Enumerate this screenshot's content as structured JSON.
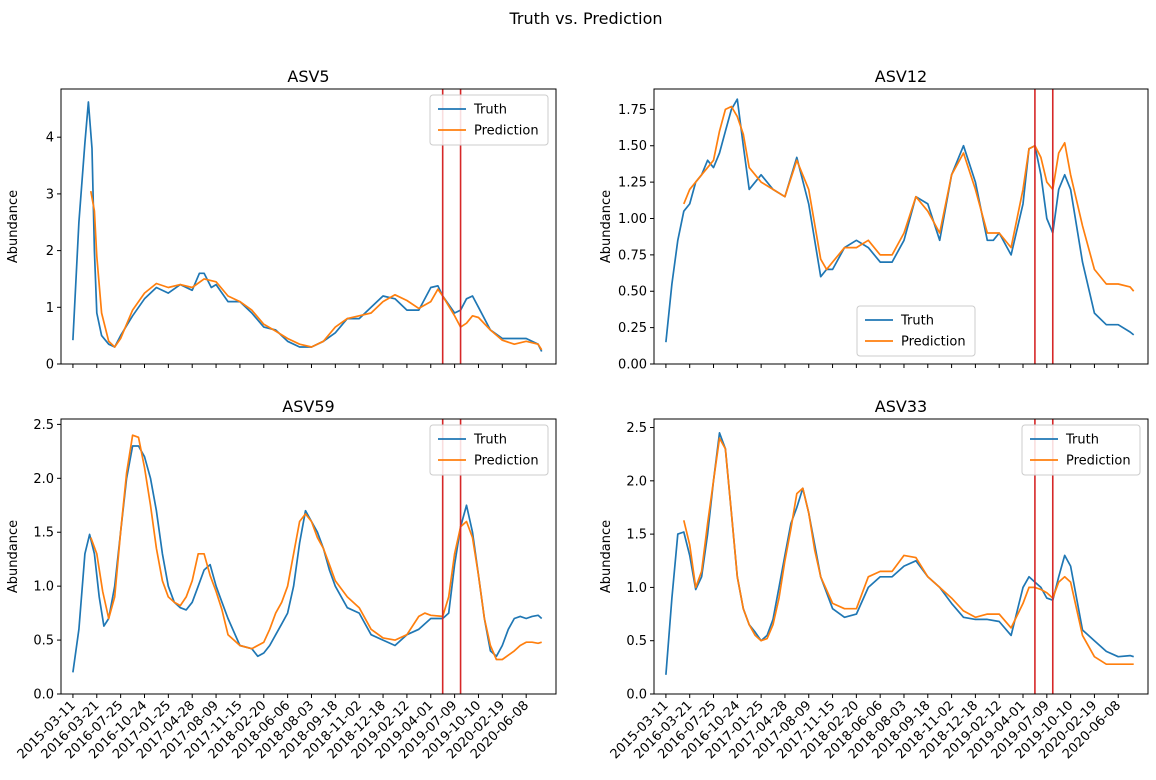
{
  "figure": {
    "title": "Truth vs. Prediction"
  },
  "colors": {
    "truth": "#1f77b4",
    "prediction": "#ff7f0e",
    "vline": "#d62728"
  },
  "chart_data": [
    {
      "type": "line",
      "title": "ASV5",
      "xlabel": "",
      "ylabel": "Abundance",
      "ylim": [
        0,
        4.85
      ],
      "yticks": [
        0,
        1,
        2,
        3,
        4
      ],
      "ytick_labels": [
        "0",
        "1",
        "2",
        "3",
        "4"
      ],
      "xticklabels_visible": false,
      "legend": {
        "loc": "upper right",
        "entries": [
          "Truth",
          "Prediction"
        ]
      },
      "vlines_x": [
        31,
        32.5
      ],
      "series": [
        {
          "name": "Truth",
          "x": [
            0,
            0.5,
            1,
            1.3,
            1.6,
            1.8,
            2,
            2.4,
            3,
            3.5,
            4,
            5,
            6,
            7,
            8,
            9,
            10,
            10.6,
            11,
            11.6,
            12,
            13,
            14,
            15,
            16,
            17,
            18,
            19,
            20,
            21,
            22,
            23,
            24,
            25,
            26,
            27,
            28,
            29,
            30,
            30.6,
            31,
            31.5,
            32,
            32.5,
            33,
            33.5,
            34,
            35,
            36,
            37,
            38,
            39,
            39.3
          ],
          "values": [
            0.42,
            2.5,
            3.9,
            4.62,
            3.8,
            2.0,
            0.9,
            0.5,
            0.35,
            0.3,
            0.5,
            0.85,
            1.15,
            1.35,
            1.25,
            1.4,
            1.3,
            1.6,
            1.6,
            1.35,
            1.4,
            1.1,
            1.1,
            0.9,
            0.65,
            0.6,
            0.4,
            0.3,
            0.3,
            0.4,
            0.55,
            0.8,
            0.8,
            1.0,
            1.2,
            1.15,
            0.95,
            0.95,
            1.35,
            1.38,
            1.2,
            1.05,
            0.9,
            0.95,
            1.15,
            1.2,
            1.0,
            0.6,
            0.45,
            0.45,
            0.45,
            0.35,
            0.22
          ]
        },
        {
          "name": "Prediction",
          "x": [
            1.5,
            1.8,
            2,
            2.4,
            3,
            3.5,
            4,
            5,
            6,
            7,
            8,
            9,
            10,
            11,
            12,
            13,
            14,
            15,
            16,
            17,
            18,
            19,
            20,
            21,
            22,
            23,
            24,
            25,
            26,
            27,
            28,
            29,
            30,
            30.6,
            31,
            32,
            32.5,
            33,
            33.5,
            34,
            35,
            36,
            37,
            38,
            39,
            39.3
          ],
          "values": [
            3.05,
            2.7,
            1.9,
            0.9,
            0.4,
            0.3,
            0.45,
            0.95,
            1.25,
            1.42,
            1.35,
            1.4,
            1.35,
            1.5,
            1.45,
            1.2,
            1.1,
            0.95,
            0.7,
            0.58,
            0.45,
            0.35,
            0.3,
            0.4,
            0.65,
            0.8,
            0.85,
            0.9,
            1.1,
            1.22,
            1.12,
            0.98,
            1.1,
            1.32,
            1.2,
            0.85,
            0.65,
            0.72,
            0.85,
            0.82,
            0.6,
            0.42,
            0.35,
            0.4,
            0.35,
            0.25
          ]
        }
      ]
    },
    {
      "type": "line",
      "title": "ASV12",
      "xlabel": "",
      "ylabel": "Abundance",
      "ylim": [
        0,
        1.89
      ],
      "yticks": [
        0,
        0.25,
        0.5,
        0.75,
        1.0,
        1.25,
        1.5,
        1.75
      ],
      "ytick_labels": [
        "0.00",
        "0.25",
        "0.50",
        "0.75",
        "1.00",
        "1.25",
        "1.50",
        "1.75"
      ],
      "xticklabels_visible": false,
      "legend": {
        "loc": "lower center",
        "entries": [
          "Truth",
          "Prediction"
        ]
      },
      "vlines_x": [
        31,
        32.5
      ],
      "series": [
        {
          "name": "Truth",
          "x": [
            0,
            0.5,
            1,
            1.5,
            2,
            2.5,
            3,
            3.5,
            4,
            4.5,
            5,
            5.5,
            6,
            6.5,
            7,
            7.5,
            8,
            9,
            10,
            11,
            12,
            13,
            13.5,
            14,
            15,
            16,
            17,
            18,
            19,
            20,
            21,
            22,
            23,
            24,
            25,
            26,
            27,
            27.5,
            28,
            29,
            30,
            30.5,
            31,
            31.5,
            32,
            32.5,
            33,
            33.5,
            34,
            35,
            36,
            37,
            38,
            39,
            39.3
          ],
          "values": [
            0.15,
            0.55,
            0.85,
            1.05,
            1.1,
            1.25,
            1.3,
            1.4,
            1.35,
            1.45,
            1.6,
            1.75,
            1.82,
            1.5,
            1.2,
            1.25,
            1.3,
            1.2,
            1.15,
            1.42,
            1.1,
            0.6,
            0.65,
            0.65,
            0.8,
            0.85,
            0.8,
            0.7,
            0.7,
            0.85,
            1.15,
            1.1,
            0.85,
            1.3,
            1.5,
            1.25,
            0.85,
            0.85,
            0.9,
            0.75,
            1.1,
            1.48,
            1.5,
            1.3,
            1.0,
            0.9,
            1.2,
            1.3,
            1.2,
            0.7,
            0.35,
            0.27,
            0.27,
            0.22,
            0.2
          ]
        },
        {
          "name": "Prediction",
          "x": [
            1.5,
            2,
            2.5,
            3,
            3.5,
            4,
            4.5,
            5,
            5.5,
            6,
            6.5,
            7,
            8,
            9,
            10,
            11,
            12,
            13,
            13.5,
            14,
            15,
            16,
            17,
            18,
            19,
            20,
            21,
            22,
            23,
            24,
            25,
            26,
            27,
            28,
            29,
            30,
            30.5,
            31,
            31.5,
            32,
            32.5,
            33,
            33.5,
            34,
            35,
            36,
            37,
            38,
            39,
            39.3
          ],
          "values": [
            1.1,
            1.2,
            1.25,
            1.3,
            1.35,
            1.4,
            1.6,
            1.75,
            1.77,
            1.7,
            1.58,
            1.35,
            1.25,
            1.2,
            1.15,
            1.4,
            1.2,
            0.72,
            0.65,
            0.7,
            0.8,
            0.8,
            0.85,
            0.75,
            0.75,
            0.9,
            1.15,
            1.05,
            0.9,
            1.3,
            1.45,
            1.2,
            0.9,
            0.9,
            0.8,
            1.2,
            1.48,
            1.5,
            1.42,
            1.25,
            1.2,
            1.45,
            1.52,
            1.3,
            0.95,
            0.65,
            0.55,
            0.55,
            0.53,
            0.5
          ]
        }
      ]
    },
    {
      "type": "line",
      "title": "ASV59",
      "xlabel": "",
      "ylabel": "Abundance",
      "ylim": [
        0,
        2.55
      ],
      "yticks": [
        0,
        0.5,
        1.0,
        1.5,
        2.0,
        2.5
      ],
      "ytick_labels": [
        "0.0",
        "0.5",
        "1.0",
        "1.5",
        "2.0",
        "2.5"
      ],
      "xticklabels_visible": true,
      "legend": {
        "loc": "upper right",
        "entries": [
          "Truth",
          "Prediction"
        ]
      },
      "vlines_x": [
        31,
        32.5
      ],
      "categories": [
        "2015-03-11",
        "2016-03-21",
        "2016-07-25",
        "2016-10-24",
        "2017-01-25",
        "2017-04-28",
        "2017-08-09",
        "2017-11-15",
        "2018-02-20",
        "2018-06-06",
        "2018-08-03",
        "2018-09-18",
        "2018-11-02",
        "2018-12-18",
        "2019-02-12",
        "2019-04-01",
        "2019-07-09",
        "2019-10-10",
        "2020-02-19",
        "2020-06-08"
      ],
      "series": [
        {
          "name": "Truth",
          "x": [
            0,
            0.5,
            1,
            1.4,
            1.8,
            2.2,
            2.6,
            3,
            3.5,
            4,
            4.5,
            5,
            5.5,
            6,
            6.5,
            7,
            7.5,
            8,
            8.5,
            9,
            9.5,
            10,
            10.5,
            11,
            11.5,
            12,
            12.5,
            13,
            14,
            15,
            15.5,
            16,
            16.5,
            17,
            17.5,
            18,
            18.5,
            19,
            19.5,
            20,
            20.5,
            21,
            21.5,
            22,
            23,
            24,
            25,
            26,
            27,
            28,
            29,
            29.5,
            30,
            31,
            31.5,
            32,
            32.5,
            33,
            33.5,
            34,
            34.5,
            35,
            35.5,
            36,
            36.5,
            37,
            37.5,
            38,
            38.5,
            39,
            39.3
          ],
          "values": [
            0.2,
            0.6,
            1.3,
            1.48,
            1.3,
            0.9,
            0.63,
            0.7,
            1.0,
            1.5,
            2.0,
            2.3,
            2.3,
            2.2,
            2.0,
            1.7,
            1.3,
            1.0,
            0.85,
            0.8,
            0.78,
            0.85,
            1.0,
            1.15,
            1.2,
            1.0,
            0.85,
            0.7,
            0.45,
            0.42,
            0.35,
            0.38,
            0.45,
            0.55,
            0.65,
            0.75,
            1.0,
            1.4,
            1.7,
            1.6,
            1.5,
            1.35,
            1.15,
            1.0,
            0.8,
            0.75,
            0.55,
            0.5,
            0.45,
            0.55,
            0.6,
            0.65,
            0.7,
            0.7,
            0.75,
            1.2,
            1.55,
            1.75,
            1.5,
            1.1,
            0.7,
            0.4,
            0.35,
            0.45,
            0.6,
            0.7,
            0.72,
            0.7,
            0.72,
            0.73,
            0.7
          ]
        },
        {
          "name": "Prediction",
          "x": [
            1.5,
            2,
            2.5,
            3,
            3.5,
            4,
            4.5,
            5,
            5.5,
            6,
            6.5,
            7,
            7.5,
            8,
            8.5,
            9,
            9.5,
            10,
            10.5,
            11,
            11.5,
            12,
            12.5,
            13,
            14,
            15,
            16,
            16.5,
            17,
            17.5,
            18,
            18.5,
            19,
            19.5,
            20,
            20.5,
            21,
            21.5,
            22,
            23,
            24,
            25,
            26,
            27,
            28,
            29,
            29.5,
            30,
            31,
            31.5,
            32,
            32.5,
            33,
            33.5,
            34,
            34.5,
            35,
            35.5,
            36,
            36.5,
            37,
            37.5,
            38,
            38.5,
            39,
            39.3
          ],
          "values": [
            1.45,
            1.3,
            0.95,
            0.7,
            0.9,
            1.5,
            2.05,
            2.4,
            2.38,
            2.1,
            1.75,
            1.35,
            1.05,
            0.9,
            0.85,
            0.82,
            0.9,
            1.05,
            1.3,
            1.3,
            1.1,
            0.95,
            0.78,
            0.55,
            0.45,
            0.42,
            0.48,
            0.6,
            0.75,
            0.85,
            1.0,
            1.3,
            1.6,
            1.67,
            1.6,
            1.45,
            1.35,
            1.2,
            1.05,
            0.9,
            0.8,
            0.6,
            0.52,
            0.5,
            0.55,
            0.72,
            0.75,
            0.73,
            0.72,
            0.9,
            1.3,
            1.55,
            1.6,
            1.45,
            1.1,
            0.7,
            0.45,
            0.32,
            0.32,
            0.36,
            0.4,
            0.45,
            0.48,
            0.48,
            0.47,
            0.48
          ]
        }
      ]
    },
    {
      "type": "line",
      "title": "ASV33",
      "xlabel": "",
      "ylabel": "Abundance",
      "ylim": [
        0,
        2.58
      ],
      "yticks": [
        0,
        0.5,
        1.0,
        1.5,
        2.0,
        2.5
      ],
      "ytick_labels": [
        "0.0",
        "0.5",
        "1.0",
        "1.5",
        "2.0",
        "2.5"
      ],
      "xticklabels_visible": true,
      "legend": {
        "loc": "upper right",
        "entries": [
          "Truth",
          "Prediction"
        ]
      },
      "vlines_x": [
        31,
        32.5
      ],
      "categories": [
        "2015-03-11",
        "2016-03-21",
        "2016-07-25",
        "2016-10-24",
        "2017-01-25",
        "2017-04-28",
        "2017-08-09",
        "2017-11-15",
        "2018-02-20",
        "2018-06-06",
        "2018-08-03",
        "2018-09-18",
        "2018-11-02",
        "2018-12-18",
        "2019-02-12",
        "2019-04-01",
        "2019-07-09",
        "2019-10-10",
        "2020-02-19",
        "2020-06-08"
      ],
      "series": [
        {
          "name": "Truth",
          "x": [
            0,
            0.5,
            1,
            1.5,
            2,
            2.5,
            3,
            3.5,
            4,
            4.5,
            5,
            5.5,
            6,
            6.5,
            7,
            7.5,
            8,
            8.5,
            9,
            9.5,
            10,
            10.5,
            11,
            11.5,
            12,
            12.5,
            13,
            14,
            15,
            16,
            17,
            18,
            19,
            20,
            21,
            22,
            23,
            24,
            25,
            26,
            27,
            28,
            29,
            30,
            30.5,
            31,
            31.5,
            32,
            32.5,
            33,
            33.5,
            34,
            35,
            36,
            37,
            38,
            39,
            39.3
          ],
          "values": [
            0.18,
            0.9,
            1.5,
            1.52,
            1.3,
            0.98,
            1.1,
            1.5,
            2.0,
            2.45,
            2.3,
            1.7,
            1.1,
            0.8,
            0.65,
            0.58,
            0.5,
            0.55,
            0.7,
            1.0,
            1.3,
            1.6,
            1.75,
            1.93,
            1.7,
            1.4,
            1.1,
            0.8,
            0.72,
            0.75,
            1.0,
            1.1,
            1.1,
            1.2,
            1.25,
            1.1,
            1.0,
            0.85,
            0.72,
            0.7,
            0.7,
            0.68,
            0.55,
            1.0,
            1.1,
            1.05,
            1.0,
            0.9,
            0.88,
            1.1,
            1.3,
            1.2,
            0.6,
            0.5,
            0.4,
            0.35,
            0.36,
            0.35
          ]
        },
        {
          "name": "Prediction",
          "x": [
            1.5,
            2,
            2.5,
            3,
            3.5,
            4,
            4.5,
            5,
            5.5,
            6,
            6.5,
            7,
            7.5,
            8,
            8.5,
            9,
            9.5,
            10,
            10.5,
            11,
            11.5,
            12,
            12.5,
            13,
            14,
            15,
            16,
            17,
            18,
            19,
            20,
            21,
            22,
            23,
            24,
            25,
            26,
            27,
            28,
            29,
            30,
            30.5,
            31,
            31.5,
            32,
            32.5,
            33,
            33.5,
            34,
            35,
            36,
            37,
            38,
            39,
            39.3
          ],
          "values": [
            1.63,
            1.4,
            1.0,
            1.15,
            1.6,
            2.0,
            2.4,
            2.3,
            1.7,
            1.1,
            0.8,
            0.65,
            0.55,
            0.5,
            0.52,
            0.65,
            0.9,
            1.25,
            1.55,
            1.88,
            1.93,
            1.7,
            1.35,
            1.1,
            0.85,
            0.8,
            0.8,
            1.1,
            1.15,
            1.15,
            1.3,
            1.28,
            1.1,
            1.0,
            0.9,
            0.78,
            0.72,
            0.75,
            0.75,
            0.62,
            0.85,
            1.0,
            1.0,
            0.98,
            0.95,
            0.9,
            1.05,
            1.1,
            1.05,
            0.55,
            0.35,
            0.28,
            0.28,
            0.28,
            0.28
          ]
        }
      ]
    }
  ]
}
